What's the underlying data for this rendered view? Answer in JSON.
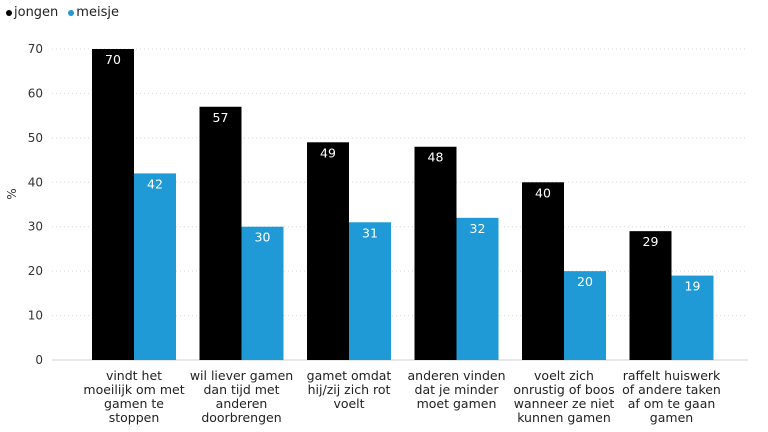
{
  "legend": [
    {
      "label": "jongen",
      "color": "#000000"
    },
    {
      "label": "meisje",
      "color": "#1f9ad6"
    }
  ],
  "chart_data": {
    "type": "bar",
    "ylabel": "%",
    "ylim": [
      0,
      70
    ],
    "yticks": [
      0,
      10,
      20,
      30,
      40,
      50,
      60,
      70
    ],
    "grid": true,
    "legend_position": "top-left",
    "categories": [
      "vindt het moeilijk om met gamen te stoppen",
      "wil liever gamen dan tijd met anderen doorbrengen",
      "gamet omdat hij/zij zich rot voelt",
      "anderen vinden dat je minder moet gamen",
      "voelt zich onrustig of boos wanneer ze niet kunnen gamen",
      "raffelt huiswerk of andere taken af om te gaan gamen"
    ],
    "series": [
      {
        "name": "jongen",
        "color": "#000000",
        "values": [
          70,
          57,
          49,
          48,
          40,
          29
        ]
      },
      {
        "name": "meisje",
        "color": "#1f9ad6",
        "values": [
          42,
          30,
          31,
          32,
          20,
          19
        ]
      }
    ]
  }
}
